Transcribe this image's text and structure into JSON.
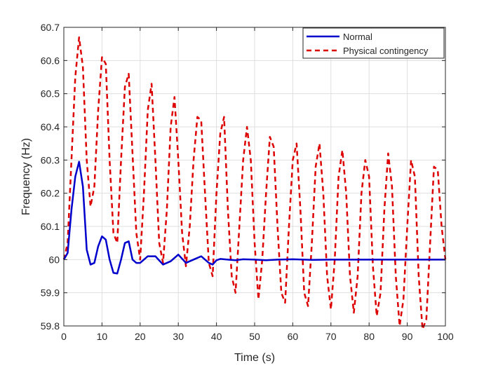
{
  "chart_data": {
    "type": "line",
    "title": "",
    "xlabel": "Time (s)",
    "ylabel": "Frequency (Hz)",
    "xlim": [
      0,
      100
    ],
    "ylim": [
      59.8,
      60.7
    ],
    "xticks": [
      0,
      10,
      20,
      30,
      40,
      50,
      60,
      70,
      80,
      90,
      100
    ],
    "yticks": [
      59.8,
      59.9,
      60.0,
      60.1,
      60.2,
      60.3,
      60.4,
      60.5,
      60.6,
      60.7
    ],
    "xtick_labels": [
      "0",
      "10",
      "20",
      "30",
      "40",
      "50",
      "60",
      "70",
      "80",
      "90",
      "100"
    ],
    "ytick_labels": [
      "59.8",
      "59.9",
      "60",
      "60.1",
      "60.2",
      "60.3",
      "60.4",
      "60.5",
      "60.6",
      "60.7"
    ],
    "grid": true,
    "legend_position": "top-right",
    "series": [
      {
        "name": "Normal",
        "color": "#0000cc",
        "style": "solid",
        "x": [
          0,
          1,
          2,
          3,
          4,
          5,
          6,
          7,
          8,
          9,
          10,
          11,
          12,
          13,
          14,
          15,
          16,
          17,
          18,
          19,
          20,
          22,
          24,
          26,
          28,
          30,
          32,
          34,
          36,
          38,
          39,
          40,
          41,
          43,
          45,
          47,
          50,
          53,
          56,
          60,
          65,
          70,
          75,
          80,
          90,
          100
        ],
        "values": [
          60.0,
          60.02,
          60.15,
          60.25,
          60.295,
          60.22,
          60.03,
          59.985,
          59.99,
          60.04,
          60.07,
          60.06,
          60.0,
          59.96,
          59.958,
          60.0,
          60.05,
          60.055,
          60.0,
          59.99,
          59.99,
          60.01,
          60.01,
          59.985,
          59.995,
          60.015,
          59.99,
          60.0,
          60.01,
          59.99,
          59.985,
          59.998,
          60.002,
          60.0,
          59.998,
          60.001,
          60.0,
          59.998,
          60.0,
          60.001,
          59.999,
          60.0,
          60.0,
          60.0,
          60.0,
          60.0
        ]
      },
      {
        "name": "Physical contingency",
        "color": "#dd0000",
        "style": "dashed",
        "x": [
          0,
          1,
          2,
          3,
          4,
          5,
          6,
          7,
          8,
          9,
          10,
          11,
          12,
          13,
          14,
          15,
          16,
          17,
          18,
          19,
          20,
          21,
          22,
          23,
          24,
          25,
          26,
          27,
          28,
          29,
          30,
          31,
          32,
          33,
          34,
          35,
          36,
          37,
          38,
          39,
          40,
          41,
          42,
          43,
          44,
          45,
          46,
          47,
          48,
          49,
          50,
          51,
          52,
          53,
          54,
          55,
          56,
          57,
          58,
          59,
          60,
          61,
          62,
          63,
          64,
          65,
          66,
          67,
          68,
          69,
          70,
          71,
          72,
          73,
          74,
          75,
          76,
          77,
          78,
          79,
          80,
          81,
          82,
          83,
          84,
          85,
          86,
          87,
          88,
          89,
          90,
          91,
          92,
          93,
          94,
          95,
          96,
          97,
          98,
          99,
          100
        ],
        "values": [
          60.0,
          60.05,
          60.3,
          60.55,
          60.67,
          60.58,
          60.3,
          60.16,
          60.22,
          60.45,
          60.61,
          60.59,
          60.3,
          60.08,
          60.05,
          60.3,
          60.52,
          60.56,
          60.32,
          60.08,
          60.0,
          60.2,
          60.45,
          60.53,
          60.3,
          60.05,
          59.99,
          60.15,
          60.4,
          60.49,
          60.3,
          60.08,
          59.98,
          60.1,
          60.3,
          60.43,
          60.42,
          60.2,
          59.99,
          59.95,
          60.2,
          60.38,
          60.43,
          60.15,
          59.95,
          59.9,
          60.1,
          60.3,
          60.4,
          60.3,
          60.05,
          59.88,
          60.0,
          60.2,
          60.37,
          60.34,
          60.1,
          59.9,
          59.87,
          60.1,
          60.3,
          60.35,
          60.15,
          59.9,
          59.86,
          60.05,
          60.28,
          60.35,
          60.2,
          59.95,
          59.85,
          60.0,
          60.25,
          60.33,
          60.2,
          59.95,
          59.84,
          59.95,
          60.2,
          60.3,
          60.25,
          59.98,
          59.83,
          59.9,
          60.15,
          60.32,
          60.22,
          59.95,
          59.8,
          59.88,
          60.1,
          60.3,
          60.25,
          59.95,
          59.79,
          59.82,
          60.05,
          60.28,
          60.27,
          60.1,
          60.0
        ]
      }
    ]
  }
}
